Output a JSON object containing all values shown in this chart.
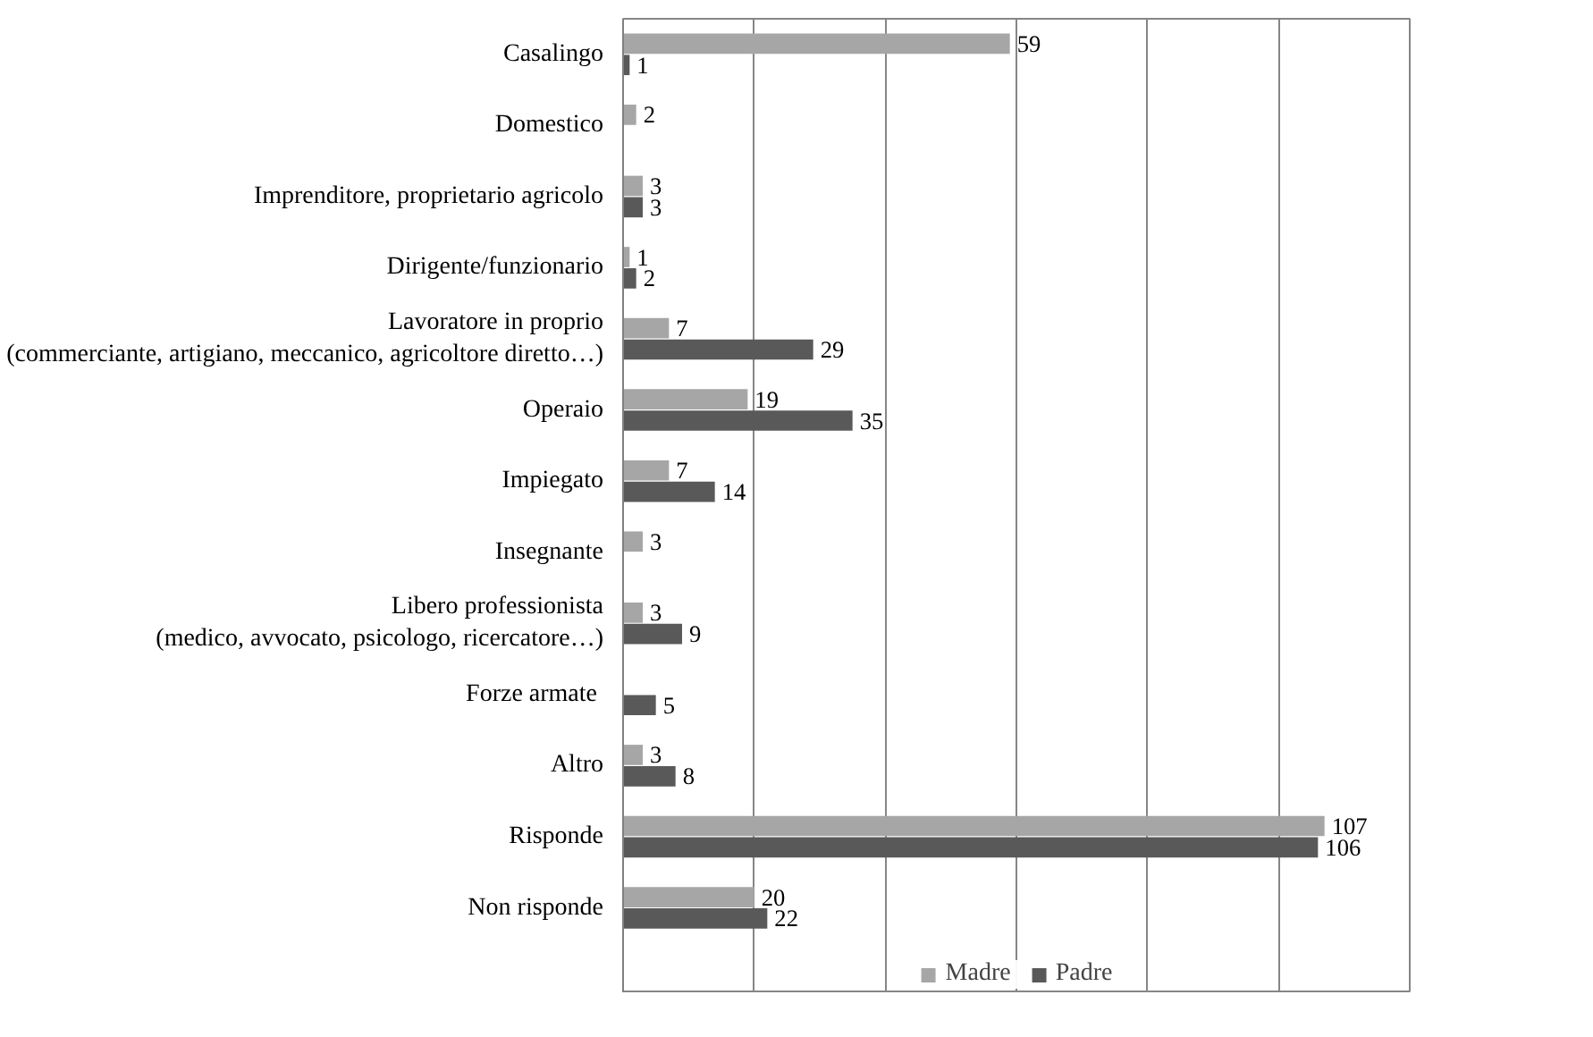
{
  "chart_data": {
    "type": "bar",
    "orientation": "horizontal",
    "categories": [
      "Casalingo",
      "Domestico",
      "Imprenditore, proprietario agricolo",
      "Dirigente/funzionario",
      "Lavoratore in proprio\n(commerciante, artigiano, meccanico, agricoltore diretto…)",
      "Operaio",
      "Impiegato",
      "Insegnante",
      "Libero professionista\n(medico, avvocato, psicologo, ricercatore…)",
      "Forze  armate",
      "Altro",
      "Risponde",
      "Non risponde"
    ],
    "series": [
      {
        "name": "Madre",
        "color": "#a6a6a6",
        "values": [
          59,
          2,
          3,
          1,
          7,
          19,
          7,
          3,
          3,
          null,
          3,
          107,
          20
        ]
      },
      {
        "name": "Padre",
        "color": "#595959",
        "values": [
          1,
          null,
          3,
          2,
          29,
          35,
          14,
          null,
          9,
          5,
          8,
          106,
          22
        ]
      }
    ],
    "xlim": [
      0,
      120
    ],
    "xticks": [
      {
        "value": 0,
        "label": null
      },
      {
        "value": 20,
        "label": null
      },
      {
        "value": 40,
        "label": null
      },
      {
        "value": 60,
        "label": null
      },
      {
        "value": 80,
        "label": null
      },
      {
        "value": 100,
        "label": null
      },
      {
        "value": 120,
        "label": null
      }
    ],
    "grid": "x",
    "tick_labels": "y",
    "legend": "bottom",
    "data_labels": true
  }
}
